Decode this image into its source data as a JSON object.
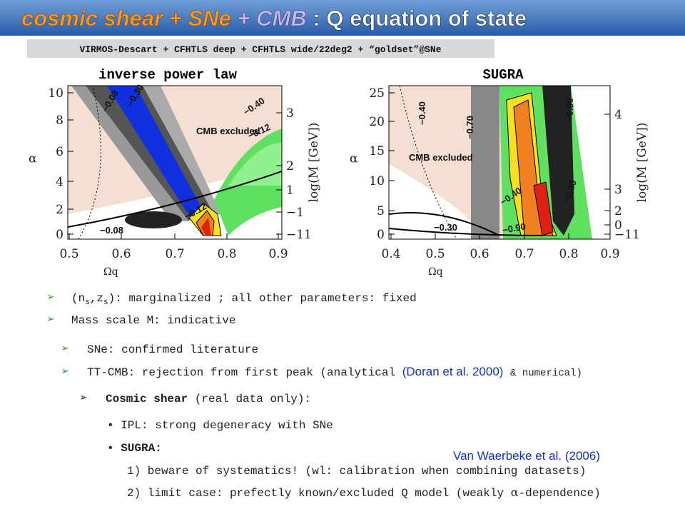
{
  "header": {
    "title_parts": [
      "cosmic shear",
      "+ SNe",
      "+ CMB",
      ": Q equation of state"
    ],
    "subtitle": "VIRMOS-Descart + CFHTLS deep + CFHTLS wide/22deg2 + “goldset”@SNe"
  },
  "panels": [
    {
      "title": "inverse power law",
      "x_label": "Ωq",
      "y_label": "α",
      "y2_label": "log(M [GeV])",
      "xticks": [
        "0.5",
        "0.6",
        "0.7",
        "0.8",
        "0.9"
      ],
      "yticks": [
        "0",
        "2",
        "4",
        "6",
        "8",
        "10"
      ],
      "y2ticks": [
        "3",
        "2",
        "1",
        "−1",
        "−11"
      ],
      "annotations": [
        "−0.08",
        "−0.30",
        "−0.40",
        "−0.12",
        "CMB excluded",
        "−0.12",
        "−0.08"
      ]
    },
    {
      "title": "SUGRA",
      "x_label": "Ωq",
      "y_label": "α",
      "y2_label": "log(M [GeV])",
      "xticks": [
        "0.4",
        "0.5",
        "0.6",
        "0.7",
        "0.8",
        "0.9"
      ],
      "yticks": [
        "0",
        "5",
        "10",
        "15",
        "20",
        "25"
      ],
      "y2ticks": [
        "4",
        "3",
        "2",
        "0",
        "−11"
      ],
      "annotations": [
        "−0.40",
        "−0.70",
        "−0.90",
        "CMB excluded",
        "−0.40",
        "−0.30",
        "−0.30",
        "−0.90"
      ]
    }
  ],
  "bullets": [
    [
      "(n",
      "s",
      ",z",
      "s",
      "): marginalized ; all other parameters: fixed"
    ],
    [
      "Mass scale M: indicative"
    ],
    [
      "SNe: confirmed literature"
    ],
    [
      "TT-CMB: rejection from first peak (analytical",
      "(Doran et al. 2000)",
      "& numerical)"
    ],
    [
      "Cosmic shear",
      "(real data only):"
    ],
    [
      "IPL:",
      "strong degeneracy with SNe"
    ],
    [
      "SUGRA:"
    ],
    [
      "1) beware of systematics! (wl: calibration when combining datasets)"
    ],
    [
      "2) limit case: prefectly known/excluded Q model (weakly",
      "α",
      "-dependence)"
    ]
  ],
  "citation": "Van Waerbeke et al. (2006)"
}
